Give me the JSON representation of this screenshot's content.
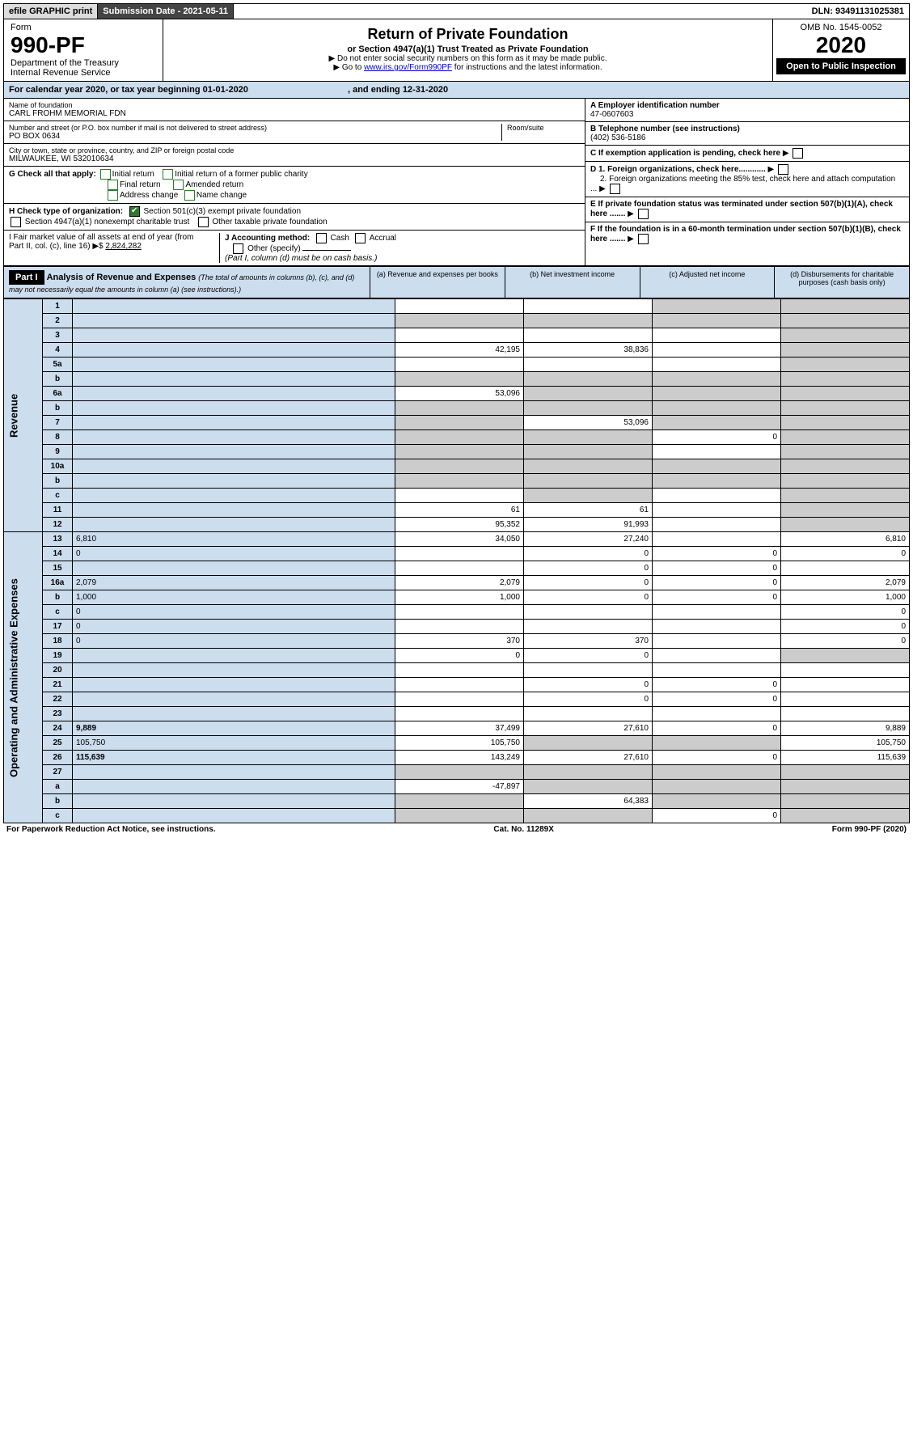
{
  "topbar": {
    "efile": "efile GRAPHIC print",
    "submission": "Submission Date - 2021-05-11",
    "dln": "DLN: 93491131025381"
  },
  "header": {
    "form": "Form",
    "form_num": "990-PF",
    "dept": "Department of the Treasury",
    "irs": "Internal Revenue Service",
    "title": "Return of Private Foundation",
    "subtitle": "or Section 4947(a)(1) Trust Treated as Private Foundation",
    "note1": "▶ Do not enter social security numbers on this form as it may be made public.",
    "note2_pre": "▶ Go to ",
    "note2_link": "www.irs.gov/Form990PF",
    "note2_post": " for instructions and the latest information.",
    "omb": "OMB No. 1545-0052",
    "year": "2020",
    "inspection": "Open to Public Inspection"
  },
  "calendar": {
    "text_a": "For calendar year 2020, or tax year beginning 01-01-2020",
    "text_b": ", and ending 12-31-2020"
  },
  "info": {
    "name_lbl": "Name of foundation",
    "name": "CARL FROHM MEMORIAL FDN",
    "addr_lbl": "Number and street (or P.O. box number if mail is not delivered to street address)",
    "addr": "PO BOX 0634",
    "room_lbl": "Room/suite",
    "city_lbl": "City or town, state or province, country, and ZIP or foreign postal code",
    "city": "MILWAUKEE, WI  532010634",
    "ein_lbl": "A Employer identification number",
    "ein": "47-0607603",
    "phone_lbl": "B Telephone number (see instructions)",
    "phone": "(402) 536-5186",
    "c_lbl": "C If exemption application is pending, check here",
    "d1": "D 1. Foreign organizations, check here............",
    "d2": "2. Foreign organizations meeting the 85% test, check here and attach computation ...",
    "e_lbl": "E  If private foundation status was terminated under section 507(b)(1)(A), check here .......",
    "f_lbl": "F  If the foundation is in a 60-month termination under section 507(b)(1)(B), check here .......",
    "g_lbl": "G Check all that apply:",
    "g_opts": [
      "Initial return",
      "Initial return of a former public charity",
      "Final return",
      "Amended return",
      "Address change",
      "Name change"
    ],
    "h_lbl": "H Check type of organization:",
    "h1": "Section 501(c)(3) exempt private foundation",
    "h2": "Section 4947(a)(1) nonexempt charitable trust",
    "h3": "Other taxable private foundation",
    "i_lbl": "I Fair market value of all assets at end of year (from Part II, col. (c), line 16) ▶$ ",
    "i_val": "2,824,282",
    "j_lbl": "J Accounting method:",
    "j_cash": "Cash",
    "j_accrual": "Accrual",
    "j_other": "Other (specify)",
    "j_note": "(Part I, column (d) must be on cash basis.)"
  },
  "part1": {
    "label": "Part I",
    "title": "Analysis of Revenue and Expenses",
    "note": "(The total of amounts in columns (b), (c), and (d) may not necessarily equal the amounts in column (a) (see instructions).)",
    "col_a": "(a)   Revenue and expenses per books",
    "col_b": "(b)  Net investment income",
    "col_c": "(c)  Adjusted net income",
    "col_d": "(d)  Disbursements for charitable purposes (cash basis only)"
  },
  "sections": {
    "revenue": "Revenue",
    "expenses": "Operating and Administrative Expenses"
  },
  "rows": [
    {
      "n": "1",
      "d": "",
      "a": "",
      "b": "",
      "c": "",
      "shade_c": true,
      "shade_d": true
    },
    {
      "n": "2",
      "d": "",
      "a": "",
      "b": "",
      "c": "",
      "shade_a": true,
      "shade_b": true,
      "shade_c": true,
      "shade_d": true,
      "bold": true
    },
    {
      "n": "3",
      "d": "",
      "a": "",
      "b": "",
      "c": "",
      "shade_d": true
    },
    {
      "n": "4",
      "d": "",
      "a": "42,195",
      "b": "38,836",
      "c": "",
      "shade_d": true,
      "dots": true
    },
    {
      "n": "5a",
      "d": "",
      "a": "",
      "b": "",
      "c": "",
      "shade_d": true,
      "dots": true
    },
    {
      "n": "b",
      "d": "",
      "a": "",
      "b": "",
      "c": "",
      "shade_a": true,
      "shade_b": true,
      "shade_c": true,
      "shade_d": true
    },
    {
      "n": "6a",
      "d": "",
      "a": "53,096",
      "b": "",
      "c": "",
      "shade_b": true,
      "shade_c": true,
      "shade_d": true
    },
    {
      "n": "b",
      "d": "",
      "a": "",
      "b": "",
      "c": "",
      "shade_a": true,
      "shade_b": true,
      "shade_c": true,
      "shade_d": true
    },
    {
      "n": "7",
      "d": "",
      "a": "",
      "b": "53,096",
      "c": "",
      "shade_a": true,
      "shade_c": true,
      "shade_d": true,
      "dots": true
    },
    {
      "n": "8",
      "d": "",
      "a": "",
      "b": "",
      "c": "0",
      "shade_a": true,
      "shade_b": true,
      "shade_d": true,
      "dots": true
    },
    {
      "n": "9",
      "d": "",
      "a": "",
      "b": "",
      "c": "",
      "shade_a": true,
      "shade_b": true,
      "shade_d": true,
      "dots": true
    },
    {
      "n": "10a",
      "d": "",
      "a": "",
      "b": "",
      "c": "",
      "shade_a": true,
      "shade_b": true,
      "shade_c": true,
      "shade_d": true
    },
    {
      "n": "b",
      "d": "",
      "a": "",
      "b": "",
      "c": "",
      "shade_a": true,
      "shade_b": true,
      "shade_c": true,
      "shade_d": true,
      "dots": true
    },
    {
      "n": "c",
      "d": "",
      "a": "",
      "b": "",
      "c": "",
      "shade_b": true,
      "shade_d": true,
      "dots": true
    },
    {
      "n": "11",
      "d": "",
      "a": "61",
      "b": "61",
      "c": "",
      "shade_d": true,
      "dots": true
    },
    {
      "n": "12",
      "d": "",
      "a": "95,352",
      "b": "91,993",
      "c": "",
      "shade_d": true,
      "bold": true,
      "dots": true
    },
    {
      "n": "13",
      "d": "6,810",
      "a": "34,050",
      "b": "27,240",
      "c": ""
    },
    {
      "n": "14",
      "d": "0",
      "a": "",
      "b": "0",
      "c": "0",
      "dots": true
    },
    {
      "n": "15",
      "d": "",
      "a": "",
      "b": "0",
      "c": "0",
      "dots": true
    },
    {
      "n": "16a",
      "d": "2,079",
      "a": "2,079",
      "b": "0",
      "c": "0",
      "dots": true
    },
    {
      "n": "b",
      "d": "1,000",
      "a": "1,000",
      "b": "0",
      "c": "0",
      "dots": true
    },
    {
      "n": "c",
      "d": "0",
      "a": "",
      "b": "",
      "c": "",
      "dots": true
    },
    {
      "n": "17",
      "d": "0",
      "a": "",
      "b": "",
      "c": "",
      "dots": true
    },
    {
      "n": "18",
      "d": "0",
      "a": "370",
      "b": "370",
      "c": "",
      "dots": true
    },
    {
      "n": "19",
      "d": "",
      "a": "0",
      "b": "0",
      "c": "",
      "shade_d": true,
      "dots": true
    },
    {
      "n": "20",
      "d": "",
      "a": "",
      "b": "",
      "c": "",
      "dots": true
    },
    {
      "n": "21",
      "d": "",
      "a": "",
      "b": "0",
      "c": "0",
      "dots": true
    },
    {
      "n": "22",
      "d": "",
      "a": "",
      "b": "0",
      "c": "0",
      "dots": true
    },
    {
      "n": "23",
      "d": "",
      "a": "",
      "b": "",
      "c": "",
      "dots": true
    },
    {
      "n": "24",
      "d": "9,889",
      "a": "37,499",
      "b": "27,610",
      "c": "0",
      "bold": true,
      "dots": true
    },
    {
      "n": "25",
      "d": "105,750",
      "a": "105,750",
      "b": "",
      "c": "",
      "shade_b": true,
      "shade_c": true,
      "dots": true
    },
    {
      "n": "26",
      "d": "115,639",
      "a": "143,249",
      "b": "27,610",
      "c": "0",
      "bold": true
    },
    {
      "n": "27",
      "d": "",
      "a": "",
      "b": "",
      "c": "",
      "shade_a": true,
      "shade_b": true,
      "shade_c": true,
      "shade_d": true
    },
    {
      "n": "a",
      "d": "",
      "a": "-47,897",
      "b": "",
      "c": "",
      "shade_b": true,
      "shade_c": true,
      "shade_d": true,
      "bold": true
    },
    {
      "n": "b",
      "d": "",
      "a": "",
      "b": "64,383",
      "c": "",
      "shade_a": true,
      "shade_c": true,
      "shade_d": true,
      "bold": true
    },
    {
      "n": "c",
      "d": "",
      "a": "",
      "b": "",
      "c": "0",
      "shade_a": true,
      "shade_b": true,
      "shade_d": true,
      "bold": true,
      "dots": true
    }
  ],
  "footer": {
    "left": "For Paperwork Reduction Act Notice, see instructions.",
    "mid": "Cat. No. 11289X",
    "right": "Form 990-PF (2020)"
  }
}
